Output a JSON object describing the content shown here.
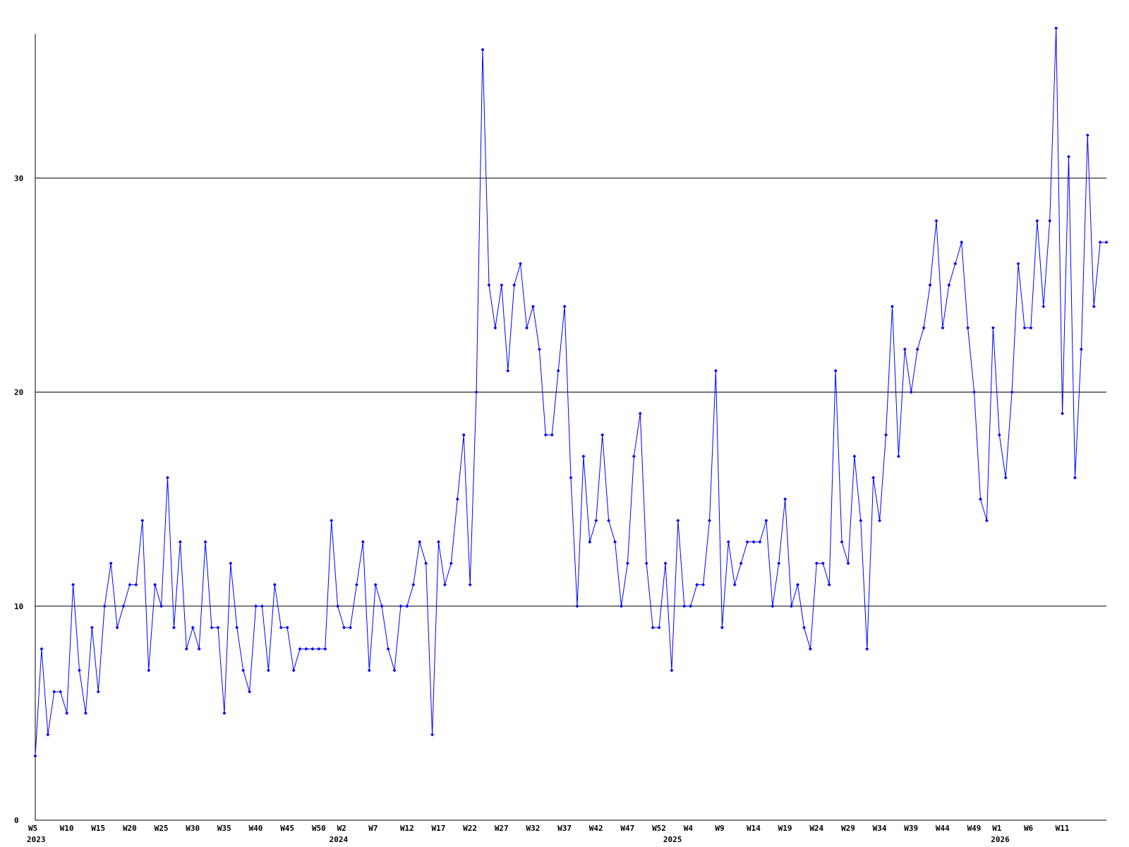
{
  "chart_data": {
    "type": "line",
    "title": "",
    "xlabel": "",
    "ylabel": "",
    "ylim": [
      0,
      37
    ],
    "y_ticks": [
      "0",
      "10",
      "20",
      "30"
    ],
    "grid": "horizontal",
    "line_color": "#0000ff",
    "axis_color": "#000000",
    "x_tick_labels": [
      {
        "week_index": 0,
        "label": "W5"
      },
      {
        "week_index": 5,
        "label": "W10"
      },
      {
        "week_index": 10,
        "label": "W15"
      },
      {
        "week_index": 15,
        "label": "W20"
      },
      {
        "week_index": 20,
        "label": "W25"
      },
      {
        "week_index": 25,
        "label": "W30"
      },
      {
        "week_index": 30,
        "label": "W35"
      },
      {
        "week_index": 35,
        "label": "W40"
      },
      {
        "week_index": 40,
        "label": "W45"
      },
      {
        "week_index": 45,
        "label": "W50"
      },
      {
        "week_index": 49,
        "label": "W2"
      },
      {
        "week_index": 54,
        "label": "W7"
      },
      {
        "week_index": 59,
        "label": "W12"
      },
      {
        "week_index": 64,
        "label": "W17"
      },
      {
        "week_index": 69,
        "label": "W22"
      },
      {
        "week_index": 74,
        "label": "W27"
      },
      {
        "week_index": 79,
        "label": "W32"
      },
      {
        "week_index": 84,
        "label": "W37"
      },
      {
        "week_index": 89,
        "label": "W42"
      },
      {
        "week_index": 94,
        "label": "W47"
      },
      {
        "week_index": 99,
        "label": "W52"
      },
      {
        "week_index": 104,
        "label": "W4"
      },
      {
        "week_index": 109,
        "label": "W9"
      },
      {
        "week_index": 114,
        "label": "W14"
      },
      {
        "week_index": 119,
        "label": "W19"
      },
      {
        "week_index": 124,
        "label": "W24"
      },
      {
        "week_index": 129,
        "label": "W29"
      },
      {
        "week_index": 134,
        "label": "W34"
      },
      {
        "week_index": 139,
        "label": "W39"
      },
      {
        "week_index": 144,
        "label": "W44"
      },
      {
        "week_index": 149,
        "label": "W49"
      },
      {
        "week_index": 153,
        "label": "W1"
      },
      {
        "week_index": 158,
        "label": "W6"
      },
      {
        "week_index": 163,
        "label": "W11"
      }
    ],
    "year_labels": [
      {
        "week_index": 0,
        "label": "2023"
      },
      {
        "week_index": 48,
        "label": "2024"
      },
      {
        "week_index": 101,
        "label": "2025"
      },
      {
        "week_index": 153,
        "label": "2026"
      }
    ],
    "series": [
      {
        "values": [
          3,
          8,
          4,
          6,
          6,
          5,
          11,
          7,
          5,
          9,
          6,
          10,
          12,
          9,
          10,
          11,
          11,
          14,
          7,
          11,
          10,
          16,
          9,
          13,
          8,
          9,
          8,
          13,
          9,
          9,
          5,
          12,
          9,
          7,
          6,
          10,
          10,
          7,
          11,
          9,
          9,
          7,
          8,
          8,
          8,
          8,
          8,
          14,
          10,
          9,
          9,
          11,
          13,
          7,
          11,
          10,
          8,
          7,
          10,
          10,
          11,
          13,
          12,
          4,
          13,
          11,
          12,
          15,
          18,
          11,
          20,
          36,
          25,
          23,
          25,
          21,
          25,
          26,
          23,
          24,
          22,
          18,
          18,
          21,
          24,
          16,
          10,
          17,
          13,
          14,
          18,
          14,
          13,
          10,
          12,
          17,
          19,
          12,
          9,
          9,
          12,
          7,
          14,
          10,
          10,
          11,
          11,
          14,
          21,
          9,
          13,
          11,
          12,
          13,
          13,
          13,
          14,
          10,
          12,
          15,
          10,
          11,
          9,
          8,
          12,
          12,
          11,
          21,
          13,
          12,
          17,
          14,
          8,
          16,
          14,
          18,
          24,
          17,
          22,
          20,
          22,
          23,
          25,
          28,
          23,
          25,
          26,
          27,
          23,
          20,
          15,
          14,
          23,
          18,
          16,
          20,
          26,
          23,
          23,
          28,
          24,
          28,
          37,
          19,
          31,
          16,
          22,
          32,
          24,
          27,
          27
        ]
      }
    ]
  }
}
